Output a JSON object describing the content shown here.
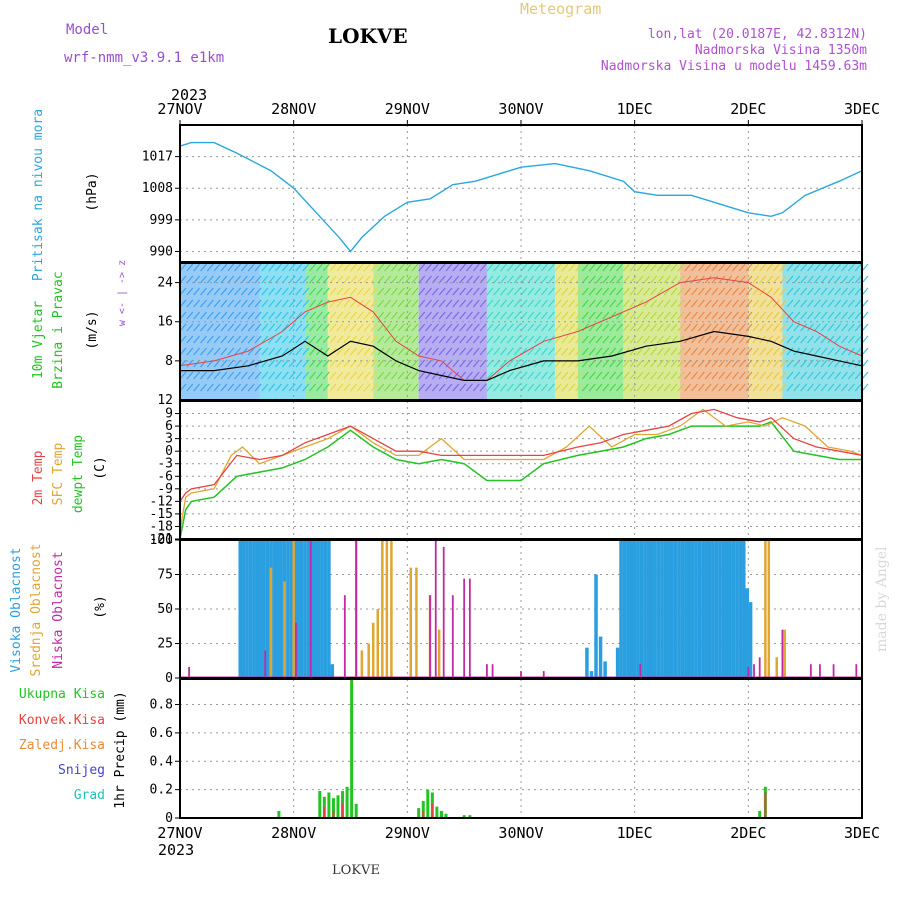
{
  "header": {
    "model_label": "Model",
    "model_name": "wrf-nmm_v3.9.1 e1km",
    "station": "LOKVE",
    "meteogram": "Meteogram",
    "lonlat": "lon,lat (20.0187E, 42.8312N)",
    "elevation": "Nadmorska Visina 1350m",
    "model_elevation": "Nadmorska Visina u modelu 1459.63m",
    "year_top": "2023",
    "year_bottom": "2023",
    "footer_station": "LOKVE",
    "watermark": "made by Angel"
  },
  "colors": {
    "pressure": "#2aa7e0",
    "temp": "#e84343",
    "sfc": "#e0a632",
    "dew": "#22c322",
    "high_cloud": "#2a9fe0",
    "mid_cloud": "#e0a632",
    "low_cloud": "#c02aa6",
    "total_precip": "#22c322",
    "conv_precip": "#e84343",
    "frozen_precip": "#ee8b33",
    "snow": "#4444cc",
    "hail": "#22c3b0",
    "model_purple": "#9a4dd0",
    "meteogram_gold": "#e6c878",
    "right_purple": "#b050d0"
  },
  "chart_data": [
    {
      "id": "pressure",
      "type": "line",
      "ylabel_1": "Pritisak na nivou mora",
      "ylabel_2": "(hPa)",
      "yticks": [
        990,
        999,
        1008,
        1017
      ],
      "ylim": [
        987,
        1026
      ],
      "x_days": [
        "27NOV",
        "28NOV",
        "29NOV",
        "30NOV",
        "1DEC",
        "2DEC",
        "3DEC"
      ],
      "series": [
        {
          "x": [
            0,
            0.1,
            0.3,
            0.5,
            0.8,
            1.0,
            1.2,
            1.4,
            1.5,
            1.6,
            1.8,
            2.0,
            2.2,
            2.4,
            2.6,
            2.8,
            3.0,
            3.3,
            3.6,
            3.9,
            4.0,
            4.2,
            4.5,
            4.8,
            5.0,
            5.2,
            5.3,
            5.5,
            5.8,
            6.0
          ],
          "y": [
            1020,
            1021,
            1021,
            1018,
            1013,
            1008,
            1001,
            994,
            990,
            994,
            1000,
            1004,
            1005,
            1009,
            1010,
            1012,
            1014,
            1015,
            1013,
            1010,
            1007,
            1006,
            1006,
            1003,
            1001,
            1000,
            1001,
            1006,
            1010,
            1013
          ]
        }
      ]
    },
    {
      "id": "wind",
      "type": "line",
      "ylabel_1": "10m Vjetar",
      "ylabel_2": "Brzina i Pravac",
      "ylabel_3": "(m/s)",
      "compass": "w <- | -> z",
      "yticks": [
        8,
        16,
        24
      ],
      "ymin_label": "12",
      "ylim": [
        0,
        28
      ],
      "series": [
        {
          "name": "speed",
          "x": [
            0,
            0.3,
            0.6,
            0.9,
            1.1,
            1.3,
            1.5,
            1.7,
            1.9,
            2.1,
            2.3,
            2.5,
            2.7,
            2.9,
            3.2,
            3.5,
            3.8,
            4.1,
            4.4,
            4.7,
            5.0,
            5.2,
            5.4,
            5.6,
            5.8,
            6.0
          ],
          "y": [
            6,
            6,
            7,
            9,
            12,
            9,
            12,
            11,
            8,
            6,
            5,
            4,
            4,
            6,
            8,
            8,
            9,
            11,
            12,
            14,
            13,
            12,
            10,
            9,
            8,
            7
          ]
        },
        {
          "name": "gust",
          "x": [
            0,
            0.3,
            0.6,
            0.9,
            1.1,
            1.3,
            1.5,
            1.7,
            1.9,
            2.1,
            2.3,
            2.5,
            2.7,
            2.9,
            3.2,
            3.5,
            3.8,
            4.1,
            4.4,
            4.7,
            5.0,
            5.2,
            5.4,
            5.6,
            5.8,
            6.0
          ],
          "y": [
            7,
            8,
            10,
            14,
            18,
            20,
            21,
            18,
            12,
            9,
            8,
            4,
            4,
            8,
            12,
            14,
            17,
            20,
            24,
            25,
            24,
            21,
            16,
            14,
            11,
            9
          ]
        }
      ]
    },
    {
      "id": "temperature",
      "type": "line",
      "ylabel_1": "2m Temp",
      "ylabel_2": "SFC Temp",
      "ylabel_3": "dewpt Temp",
      "ylabel_4": "(C)",
      "yticks": [
        -21,
        -18,
        -15,
        -12,
        -9,
        -6,
        -3,
        0,
        3,
        6,
        9
      ],
      "ylim": [
        -21,
        12
      ],
      "series": [
        {
          "name": "2m Temp",
          "x": [
            0,
            0.05,
            0.1,
            0.3,
            0.5,
            0.7,
            0.9,
            1.1,
            1.3,
            1.5,
            1.7,
            1.9,
            2.1,
            2.3,
            2.5,
            2.7,
            3.0,
            3.2,
            3.5,
            3.7,
            3.9,
            4.1,
            4.3,
            4.5,
            4.7,
            4.9,
            5.1,
            5.2,
            5.4,
            5.6,
            5.8,
            6.0
          ],
          "y": [
            -12,
            -10,
            -9,
            -8,
            -1,
            -2,
            -1,
            2,
            4,
            6,
            3,
            0,
            0,
            -1,
            -1,
            -1,
            -1,
            -1,
            1,
            2,
            4,
            5,
            6,
            9,
            10,
            8,
            7,
            8,
            3,
            1,
            0,
            -1
          ]
        },
        {
          "name": "SFC Temp",
          "x": [
            0,
            0.05,
            0.1,
            0.3,
            0.45,
            0.55,
            0.7,
            0.9,
            1.1,
            1.3,
            1.5,
            1.7,
            1.9,
            2.1,
            2.3,
            2.5,
            2.7,
            3.0,
            3.2,
            3.4,
            3.6,
            3.8,
            4.0,
            4.2,
            4.4,
            4.6,
            4.8,
            5.0,
            5.15,
            5.3,
            5.5,
            5.7,
            5.9,
            6.0
          ],
          "y": [
            -19,
            -11,
            -10,
            -9,
            -1,
            1,
            -3,
            -1,
            1,
            3,
            6,
            2,
            -1,
            -1,
            3,
            -2,
            -2,
            -2,
            -2,
            1,
            6,
            1,
            4,
            4,
            6,
            10,
            6,
            7,
            6,
            8,
            6,
            1,
            0,
            -1
          ]
        },
        {
          "name": "dewpt Temp",
          "x": [
            0,
            0.05,
            0.1,
            0.3,
            0.5,
            0.7,
            0.9,
            1.1,
            1.3,
            1.5,
            1.7,
            1.9,
            2.1,
            2.3,
            2.5,
            2.7,
            3.0,
            3.2,
            3.5,
            3.7,
            3.9,
            4.1,
            4.3,
            4.5,
            4.7,
            4.9,
            5.1,
            5.2,
            5.4,
            5.6,
            5.8,
            6.0
          ],
          "y": [
            -21,
            -14,
            -12,
            -11,
            -6,
            -5,
            -4,
            -2,
            1,
            5,
            1,
            -2,
            -3,
            -2,
            -3,
            -7,
            -7,
            -3,
            -1,
            0,
            1,
            3,
            4,
            6,
            6,
            6,
            6,
            7,
            0,
            -1,
            -2,
            -2
          ]
        }
      ]
    },
    {
      "id": "cloud",
      "type": "bar",
      "ylabel_1": "Visoka Oblacnost",
      "ylabel_2": "Srednja Oblacnost",
      "ylabel_3": "Niska Oblacnost",
      "ylabel_4": "(%)",
      "yticks": [
        0,
        25,
        50,
        75,
        100
      ],
      "ylim": [
        0,
        100
      ],
      "series": [
        {
          "name": "Visoka Oblacnost",
          "x": [
            0.53,
            0.56,
            0.59,
            0.62,
            0.65,
            0.68,
            0.71,
            0.74,
            0.77,
            0.8,
            0.83,
            0.86,
            0.89,
            0.92,
            0.95,
            0.98,
            1.01,
            1.04,
            1.07,
            1.1,
            1.13,
            1.16,
            1.19,
            1.22,
            1.25,
            1.28,
            1.31,
            1.34,
            3.58,
            3.62,
            3.66,
            3.7,
            3.74,
            3.78,
            3.85,
            3.88,
            3.91,
            3.94,
            3.97,
            4.0,
            4.03,
            4.06,
            4.09,
            4.12,
            4.15,
            4.18,
            4.21,
            4.24,
            4.27,
            4.3,
            4.33,
            4.36,
            4.39,
            4.42,
            4.45,
            4.48,
            4.51,
            4.54,
            4.57,
            4.6,
            4.63,
            4.66,
            4.69,
            4.72,
            4.75,
            4.78,
            4.81,
            4.84,
            4.87,
            4.9,
            4.93,
            4.96,
            4.99,
            5.02
          ],
          "values": [
            100,
            100,
            100,
            100,
            100,
            100,
            100,
            100,
            100,
            100,
            100,
            100,
            100,
            100,
            100,
            100,
            100,
            100,
            100,
            100,
            100,
            100,
            100,
            100,
            100,
            100,
            100,
            10,
            22,
            5,
            75,
            30,
            12,
            0,
            22,
            100,
            100,
            100,
            100,
            100,
            100,
            100,
            100,
            100,
            100,
            100,
            100,
            100,
            100,
            100,
            100,
            100,
            100,
            100,
            100,
            100,
            100,
            100,
            100,
            100,
            100,
            100,
            100,
            100,
            100,
            100,
            100,
            100,
            100,
            100,
            100,
            100,
            65,
            55
          ]
        },
        {
          "name": "Srednja Oblacnost",
          "x": [
            0.8,
            0.92,
            1.0,
            1.55,
            1.6,
            1.66,
            1.7,
            1.74,
            1.78,
            1.82,
            1.86,
            2.03,
            2.08,
            2.2,
            2.28,
            5.15,
            5.18,
            5.25,
            5.32
          ],
          "values": [
            80,
            70,
            100,
            100,
            20,
            25,
            40,
            50,
            100,
            100,
            100,
            80,
            80,
            60,
            35,
            100,
            100,
            15,
            35
          ]
        },
        {
          "name": "Niska Oblacnost",
          "x": [
            0.08,
            0.75,
            1.02,
            1.15,
            1.45,
            1.55,
            2.2,
            2.25,
            2.32,
            2.4,
            2.5,
            2.55,
            2.7,
            2.75,
            3.0,
            3.2,
            4.05,
            5.0,
            5.05,
            5.1,
            5.3,
            5.55,
            5.63,
            5.75,
            5.95,
            6.0
          ],
          "values": [
            8,
            20,
            40,
            100,
            60,
            100,
            60,
            100,
            95,
            60,
            72,
            72,
            10,
            10,
            5,
            5,
            10,
            8,
            10,
            15,
            35,
            10,
            10,
            10,
            10,
            10
          ]
        }
      ]
    },
    {
      "id": "precip",
      "type": "bar",
      "ylabel_1": "1hr Precip (mm)",
      "legend": [
        "Ukupna Kisa",
        "Konvek.Kisa",
        "Zaledj.Kisa",
        "Snijeg",
        "Grad"
      ],
      "yticks": [
        0,
        0.2,
        0.4,
        0.6,
        0.8
      ],
      "ylim": [
        0,
        0.98
      ],
      "series": [
        {
          "name": "Ukupna Kisa",
          "x": [
            0.87,
            1.23,
            1.27,
            1.31,
            1.35,
            1.39,
            1.43,
            1.47,
            1.51,
            1.55,
            2.1,
            2.14,
            2.18,
            2.22,
            2.26,
            2.3,
            2.34,
            2.5,
            2.55,
            5.1,
            5.15
          ],
          "values": [
            0.05,
            0.19,
            0.15,
            0.18,
            0.14,
            0.16,
            0.19,
            0.22,
            0.98,
            0.1,
            0.07,
            0.12,
            0.2,
            0.18,
            0.08,
            0.05,
            0.03,
            0.02,
            0.02,
            0.05,
            0.22
          ]
        },
        {
          "name": "Konvek.Kisa",
          "x": [
            1.27,
            1.35,
            1.43,
            2.14,
            2.22,
            5.15
          ],
          "values": [
            0.08,
            0.05,
            0.1,
            0.05,
            0.1,
            0.18
          ]
        }
      ]
    }
  ]
}
